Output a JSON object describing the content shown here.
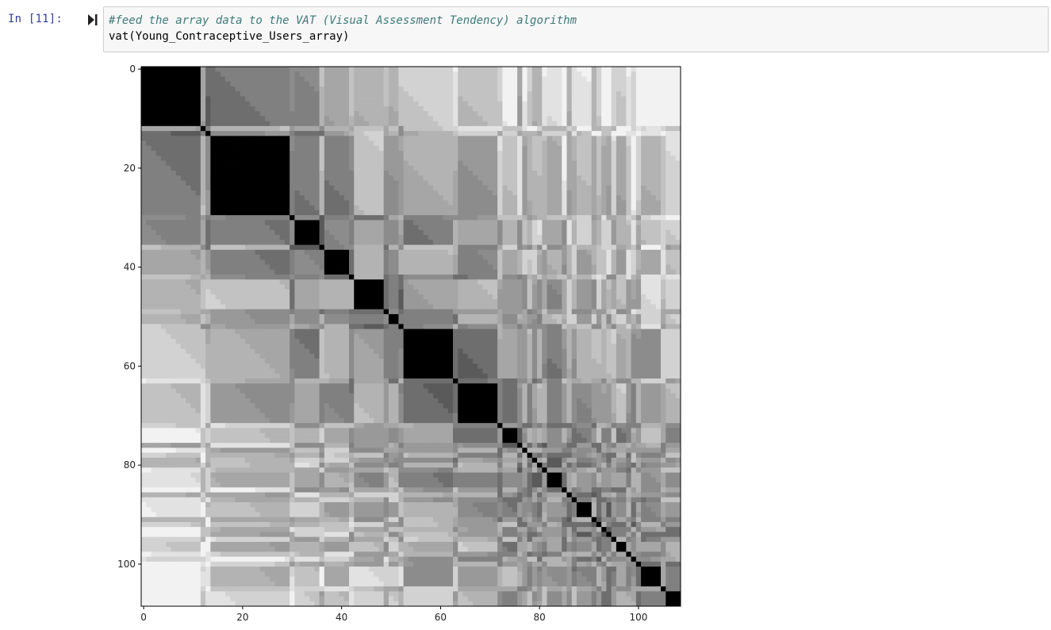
{
  "cell": {
    "prompt": "In [11]:",
    "code_comment": "#feed the array data to the VAT (Visual Assessment Tendency) algorithm",
    "code_line": "vat(Young_Contraceptive_Users_array)"
  },
  "chart_data": {
    "type": "heatmap",
    "colormap": "gray",
    "size": 109,
    "x_ticks": [
      0,
      20,
      40,
      60,
      80,
      100
    ],
    "y_ticks": [
      0,
      20,
      40,
      60,
      80,
      100
    ],
    "xlim": [
      0,
      108
    ],
    "ylim": [
      108,
      0
    ],
    "diagonal_blocks": [
      {
        "start": 0,
        "end": 11
      },
      {
        "start": 12,
        "end": 12
      },
      {
        "start": 14,
        "end": 29
      },
      {
        "start": 31,
        "end": 35
      },
      {
        "start": 37,
        "end": 41
      },
      {
        "start": 43,
        "end": 48
      },
      {
        "start": 50,
        "end": 51
      },
      {
        "start": 53,
        "end": 62
      },
      {
        "start": 64,
        "end": 71
      },
      {
        "start": 73,
        "end": 75
      },
      {
        "start": 82,
        "end": 84
      },
      {
        "start": 88,
        "end": 90
      },
      {
        "start": 96,
        "end": 97
      },
      {
        "start": 101,
        "end": 104
      },
      {
        "start": 106,
        "end": 108
      }
    ]
  }
}
